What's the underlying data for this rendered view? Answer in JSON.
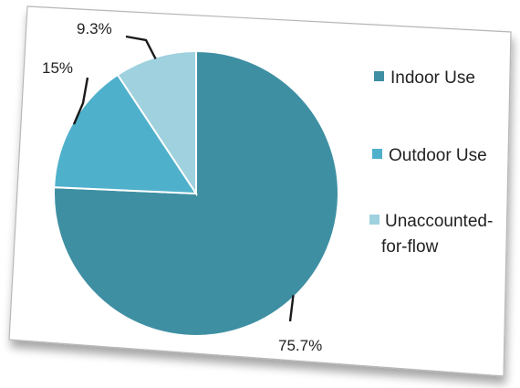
{
  "chart_data": {
    "type": "pie",
    "title": "",
    "slices": [
      {
        "label": "Indoor Use",
        "value": 75.7,
        "display": "75.7%",
        "color": "#3f8fa3"
      },
      {
        "label": "Outdoor Use",
        "value": 15,
        "display": "15%",
        "color": "#4fb0cb"
      },
      {
        "label": "Unaccounted-for-flow",
        "value": 9.3,
        "display": "9.3%",
        "color": "#9fd1df"
      }
    ],
    "legend": {
      "placement": "right",
      "items": [
        {
          "line1": "Indoor Use",
          "line2": "",
          "color": "#3f8fa3"
        },
        {
          "line1": "Outdoor Use",
          "line2": "",
          "color": "#4fb0cb"
        },
        {
          "line1": "Unaccounted-",
          "line2": "for-flow",
          "color": "#9fd1df"
        }
      ]
    },
    "colors": {
      "slice_border": "#ffffff",
      "leader_line": "#1a1a1a",
      "card_border": "#b7b7b7"
    }
  }
}
